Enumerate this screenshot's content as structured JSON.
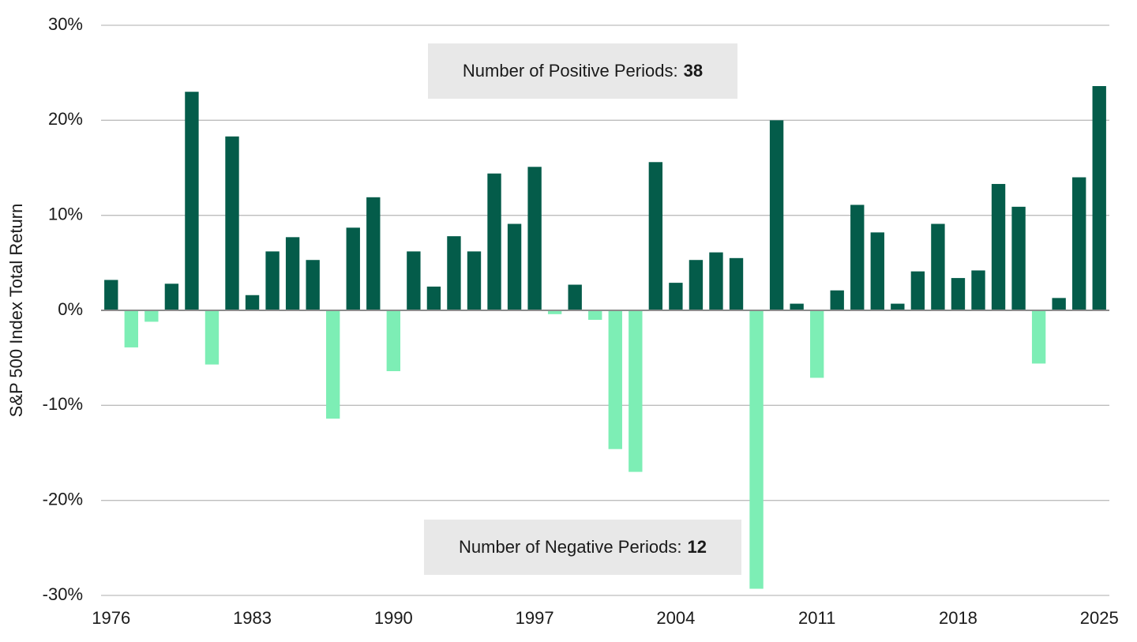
{
  "chart_data": {
    "type": "bar",
    "ylabel": "S&P 500 Index Total Return",
    "categories": [
      "1976",
      null,
      null,
      null,
      null,
      null,
      null,
      "1983",
      null,
      null,
      null,
      null,
      null,
      null,
      "1990",
      null,
      null,
      null,
      null,
      null,
      null,
      "1997",
      null,
      null,
      null,
      null,
      null,
      null,
      "2004",
      null,
      null,
      null,
      null,
      null,
      null,
      "2011",
      null,
      null,
      null,
      null,
      null,
      null,
      "2018",
      null,
      null,
      null,
      null,
      null,
      null,
      "2025"
    ],
    "values": [
      3.2,
      -3.9,
      -1.2,
      2.8,
      23.0,
      -5.7,
      18.3,
      1.6,
      6.2,
      7.7,
      5.3,
      -11.4,
      8.7,
      11.9,
      -6.4,
      6.2,
      2.5,
      7.8,
      6.2,
      14.4,
      9.1,
      15.1,
      -0.4,
      2.7,
      -1.0,
      -14.6,
      -17.0,
      15.6,
      2.9,
      5.3,
      6.1,
      5.5,
      -29.3,
      20.0,
      0.7,
      -7.1,
      2.1,
      11.1,
      8.2,
      0.7,
      4.1,
      9.1,
      3.4,
      4.2,
      13.3,
      10.9,
      -5.6,
      1.3,
      14.0,
      23.6
    ],
    "color": "#045c4a",
    "negative_color": "#7deeb5",
    "ylim": [
      -30,
      30
    ],
    "yticks": [
      {
        "value": -30,
        "label": "-30%"
      },
      {
        "value": -20,
        "label": "-20%"
      },
      {
        "value": -10,
        "label": "-10%"
      },
      {
        "value": 0,
        "label": "0%"
      },
      {
        "value": 10,
        "label": "10%"
      },
      {
        "value": 20,
        "label": "20%"
      },
      {
        "value": 30,
        "label": "30%"
      }
    ],
    "grid": true,
    "annotations": [
      {
        "text": "Number of Positive Periods:",
        "value": 38
      },
      {
        "text": "Number of Negative Periods:",
        "value": 12
      }
    ]
  }
}
